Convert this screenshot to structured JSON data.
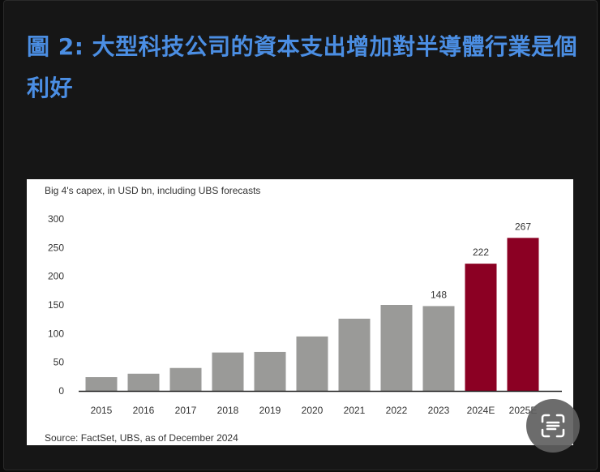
{
  "title": "圖 2: 大型科技公司的資本支出增加對半導體行業是個利好",
  "chart_data": {
    "type": "bar",
    "title": "Big 4's capex, in USD bn, including UBS forecasts",
    "source": "Source: FactSet, UBS, as of December 2024",
    "categories": [
      "2015",
      "2016",
      "2017",
      "2018",
      "2019",
      "2020",
      "2021",
      "2022",
      "2023",
      "2024E",
      "2025E"
    ],
    "values": [
      24,
      30,
      40,
      67,
      68,
      95,
      126,
      150,
      148,
      222,
      267
    ],
    "data_labels": {
      "2023": "148",
      "2024E": "222",
      "2025E": "267"
    },
    "ylim": [
      0,
      300
    ],
    "yticks": [
      0,
      50,
      100,
      150,
      200,
      250,
      300
    ],
    "grid": false,
    "colors": {
      "actual": "#9a9a98",
      "forecast": "#8b0023"
    }
  },
  "lens_button": {
    "icon": "google-lens-scan-icon"
  }
}
